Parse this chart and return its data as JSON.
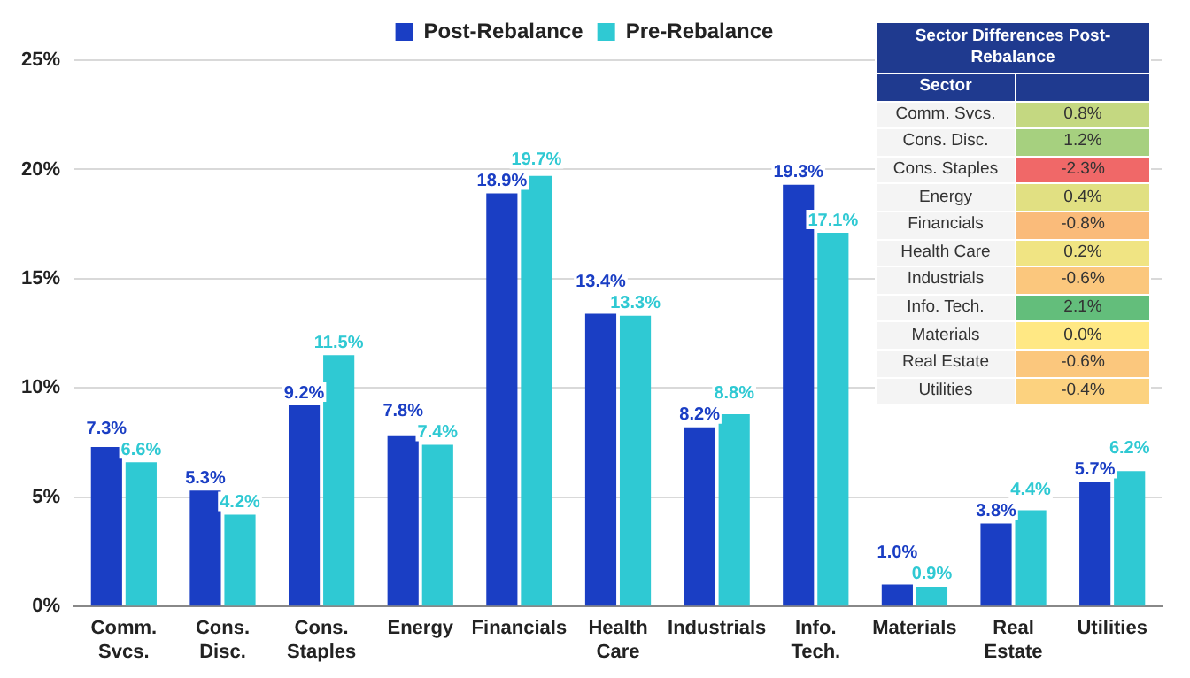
{
  "chart_data": [
    {
      "type": "bar",
      "categories": [
        "Comm. Svcs.",
        "Cons. Disc.",
        "Cons. Staples",
        "Energy",
        "Financials",
        "Health Care",
        "Industrials",
        "Info. Tech.",
        "Materials",
        "Real Estate",
        "Utilities"
      ],
      "series": [
        {
          "name": "Post-Rebalance",
          "color": "#1a3ec4",
          "values": [
            7.3,
            5.3,
            9.2,
            7.8,
            18.9,
            13.4,
            8.2,
            19.3,
            1.0,
            3.8,
            5.7
          ],
          "value_labels": [
            "7.3%",
            "5.3%",
            "9.2%",
            "7.8%",
            "18.9%",
            "13.4%",
            "8.2%",
            "19.3%",
            "1.0%",
            "3.8%",
            "5.7%"
          ]
        },
        {
          "name": "Pre-Rebalance",
          "color": "#2fc9d3",
          "values": [
            6.6,
            4.2,
            11.5,
            7.4,
            19.7,
            13.3,
            8.8,
            17.1,
            0.9,
            4.4,
            6.2
          ],
          "value_labels": [
            "6.6%",
            "4.2%",
            "11.5%",
            "7.4%",
            "19.7%",
            "13.3%",
            "8.8%",
            "17.1%",
            "0.9%",
            "4.4%",
            "6.2%"
          ]
        }
      ],
      "ylim": [
        0,
        25
      ],
      "yticks": [
        {
          "value": 0,
          "label": "0%"
        },
        {
          "value": 5,
          "label": "5%"
        },
        {
          "value": 10,
          "label": "10%"
        },
        {
          "value": 15,
          "label": "15%"
        },
        {
          "value": 20,
          "label": "20%"
        },
        {
          "value": 25,
          "label": "25%"
        }
      ],
      "grid": "y",
      "legend": "top"
    },
    {
      "type": "other",
      "title": "Sector Differences Post-Rebalance",
      "ylabel": "Sector",
      "categories": [
        "Comm. Svcs.",
        "Cons. Disc.",
        "Cons. Staples",
        "Energy",
        "Financials",
        "Health Care",
        "Industrials",
        "Info. Tech.",
        "Materials",
        "Real Estate",
        "Utilities"
      ],
      "values": [
        0.8,
        1.2,
        -2.3,
        0.4,
        -0.8,
        0.2,
        -0.6,
        2.1,
        0.0,
        -0.6,
        -0.4
      ],
      "value_labels": [
        "0.8%",
        "1.2%",
        "-2.3%",
        "0.4%",
        "-0.8%",
        "0.2%",
        "-0.6%",
        "2.1%",
        "0.0%",
        "-0.6%",
        "-0.4%"
      ]
    }
  ]
}
